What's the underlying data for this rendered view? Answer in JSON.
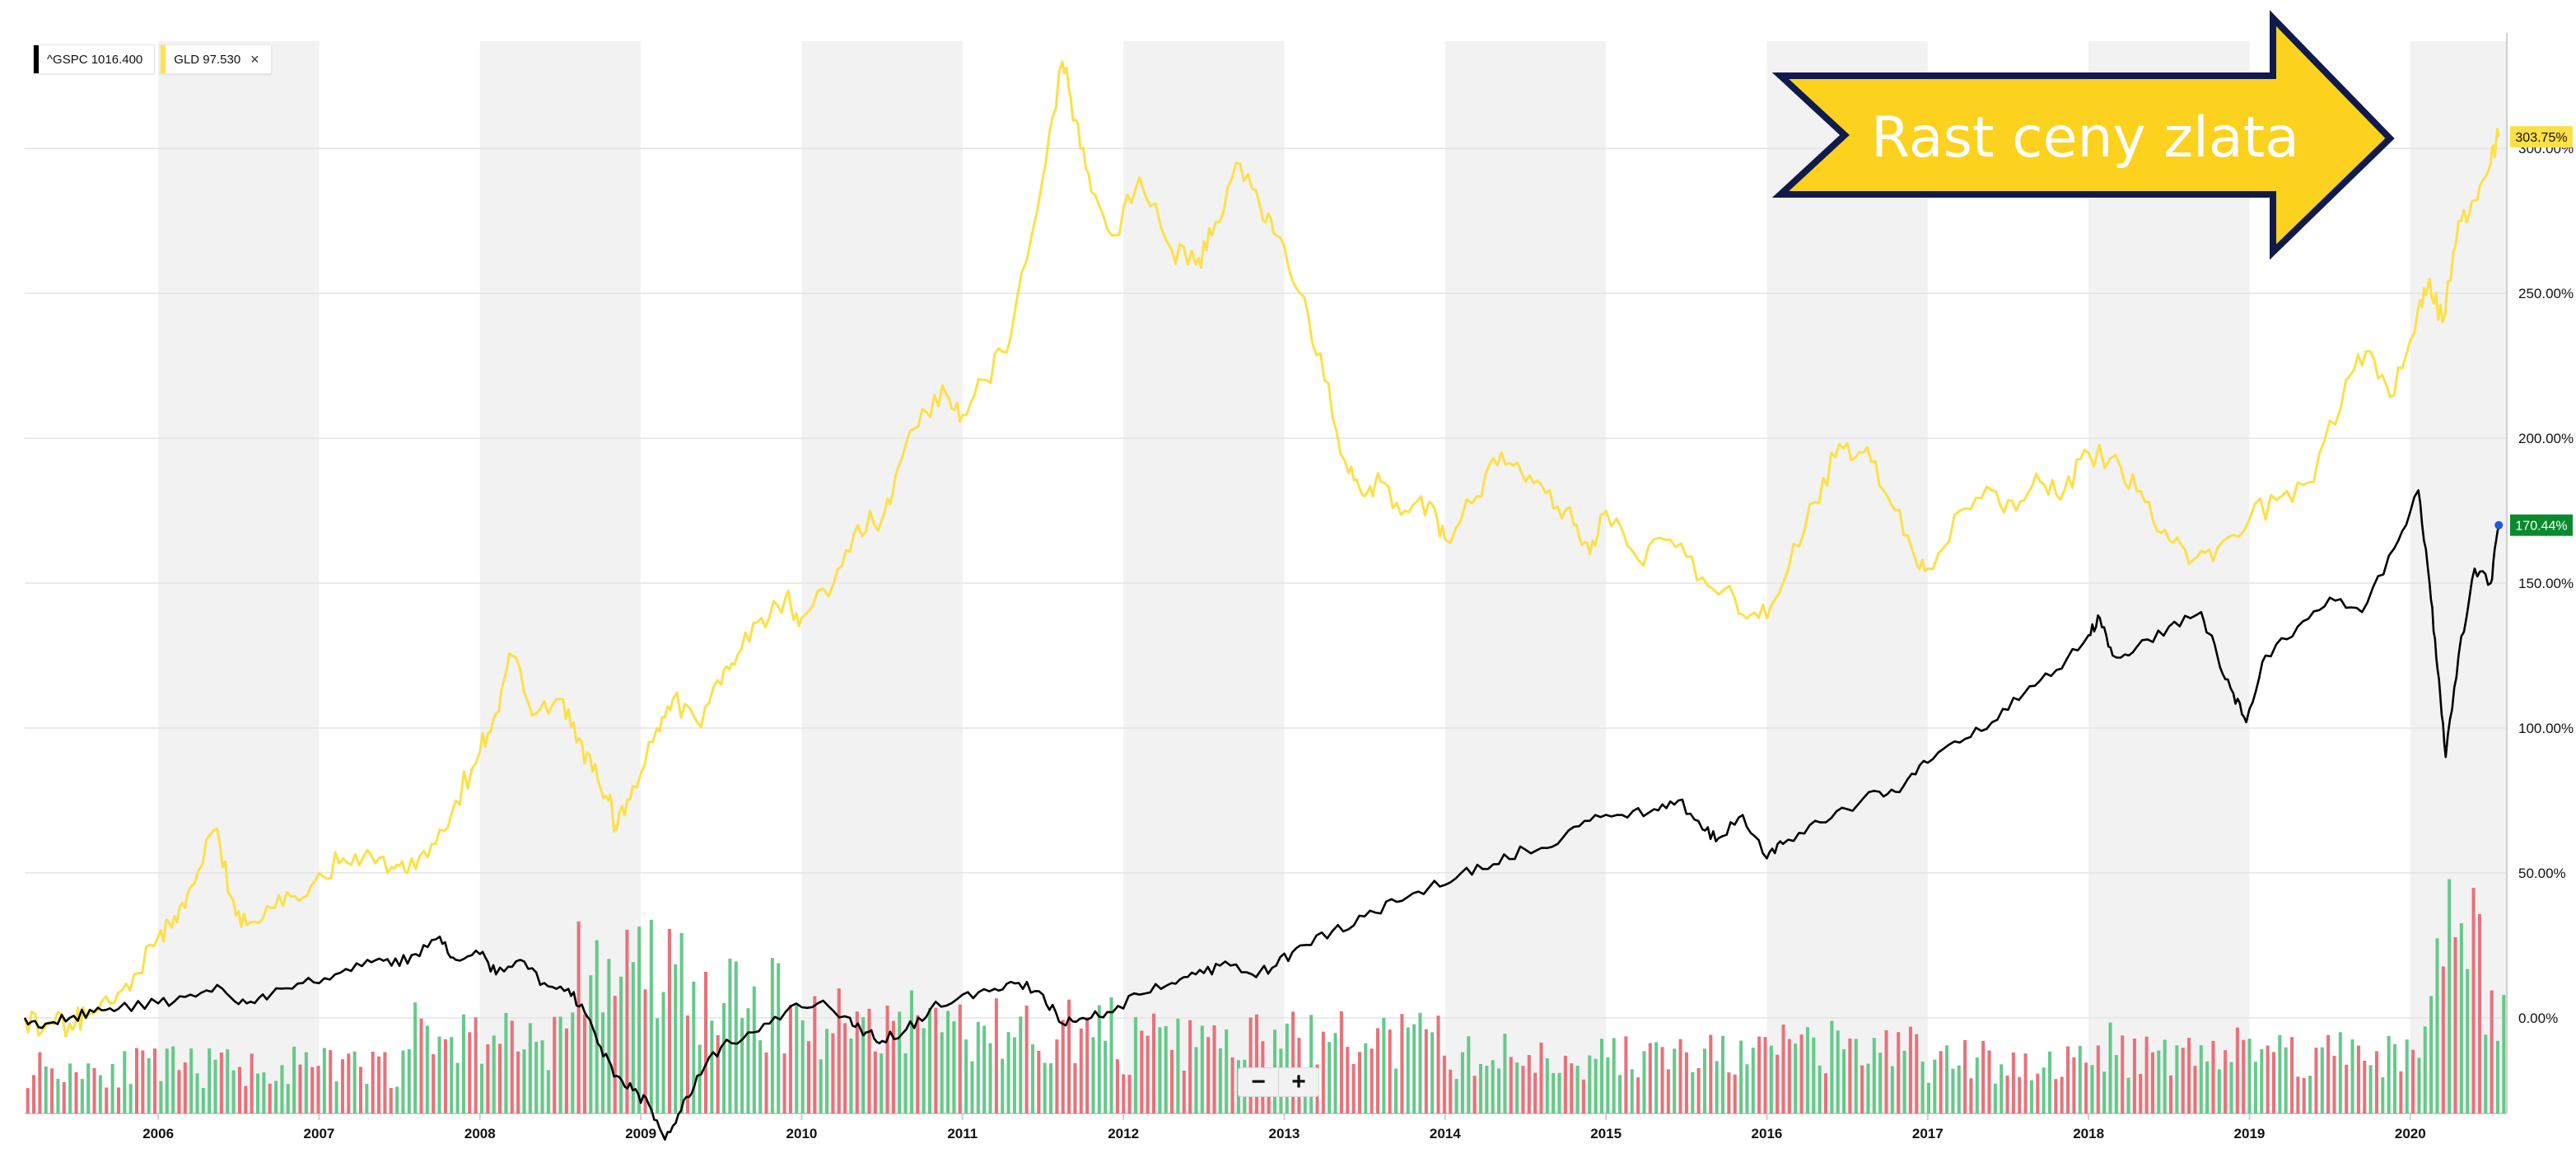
{
  "legend": [
    {
      "label": "^GSPC 1016.400",
      "color": "#000000",
      "closable": false
    },
    {
      "label": "GLD 97.530",
      "color": "#ffe14d",
      "closable": true
    }
  ],
  "legend_close_glyph": "×",
  "zoom": {
    "minus": "−",
    "plus": "+"
  },
  "overlay_arrow": {
    "text": "Rast ceny zlata",
    "fill": "#fcd21e",
    "stroke": "#0f1b4a",
    "text_color": "#ffffff"
  },
  "colors": {
    "gld": "#fde047",
    "gspc": "#000000",
    "vol_up": "#65c98a",
    "vol_down": "#e8717a",
    "band": "#f2f2f2",
    "gld_badge_bg": "#fde047",
    "gspc_badge_bg": "#0a8a2e"
  },
  "chart_data": {
    "type": "line",
    "x_unit": "year",
    "xlim": [
      2005.17,
      2020.6
    ],
    "ylim": [
      -0.33,
      3.37
    ],
    "y_ticks": [
      0,
      0.5,
      1.0,
      1.5,
      2.0,
      2.5,
      3.0
    ],
    "y_tick_labels": [
      "0.00%",
      "50.00%",
      "100.00%",
      "150.00%",
      "200.00%",
      "250.00%",
      "300.00%"
    ],
    "x_ticks": [
      2006,
      2007,
      2008,
      2009,
      2010,
      2011,
      2012,
      2013,
      2014,
      2015,
      2016,
      2017,
      2018,
      2019,
      2020
    ],
    "x_tick_labels": [
      "2006",
      "2007",
      "2008",
      "2009",
      "2010",
      "2011",
      "2012",
      "2013",
      "2014",
      "2015",
      "2016",
      "2017",
      "2018",
      "2019",
      "2020"
    ],
    "grid": true,
    "legend_position": "top-left",
    "series": [
      {
        "name": "GLD",
        "last_label": "303.75%",
        "x": [
          2005.17,
          2005.3,
          2005.45,
          2005.55,
          2005.7,
          2005.85,
          2006.0,
          2006.1,
          2006.2,
          2006.35,
          2006.45,
          2006.55,
          2006.7,
          2006.85,
          2007.0,
          2007.15,
          2007.3,
          2007.45,
          2007.55,
          2007.7,
          2007.85,
          2008.0,
          2008.1,
          2008.2,
          2008.35,
          2008.5,
          2008.6,
          2008.7,
          2008.8,
          2008.85,
          2008.95,
          2009.1,
          2009.2,
          2009.35,
          2009.5,
          2009.6,
          2009.75,
          2009.9,
          2010.0,
          2010.2,
          2010.35,
          2010.5,
          2010.6,
          2010.75,
          2010.9,
          2011.0,
          2011.15,
          2011.3,
          2011.5,
          2011.62,
          2011.7,
          2011.8,
          2011.95,
          2012.1,
          2012.3,
          2012.45,
          2012.55,
          2012.7,
          2012.85,
          2012.95,
          2013.1,
          2013.25,
          2013.4,
          2013.5,
          2013.6,
          2013.75,
          2013.9,
          2014.0,
          2014.2,
          2014.35,
          2014.5,
          2014.65,
          2014.8,
          2014.9,
          2015.0,
          2015.2,
          2015.4,
          2015.6,
          2015.8,
          2015.95,
          2016.1,
          2016.3,
          2016.45,
          2016.6,
          2016.75,
          2016.9,
          2017.0,
          2017.2,
          2017.4,
          2017.55,
          2017.7,
          2017.85,
          2018.0,
          2018.2,
          2018.35,
          2018.5,
          2018.65,
          2018.8,
          2019.0,
          2019.2,
          2019.4,
          2019.6,
          2019.75,
          2019.9,
          2020.05,
          2020.12,
          2020.2,
          2020.3,
          2020.4,
          2020.5,
          2020.55
        ],
        "values": [
          0.0,
          -0.03,
          -0.02,
          0.0,
          0.05,
          0.15,
          0.28,
          0.35,
          0.45,
          0.65,
          0.42,
          0.32,
          0.38,
          0.42,
          0.5,
          0.55,
          0.58,
          0.52,
          0.5,
          0.6,
          0.75,
          0.92,
          1.05,
          1.25,
          1.05,
          1.1,
          0.95,
          0.85,
          0.75,
          0.65,
          0.8,
          1.0,
          1.1,
          1.02,
          1.15,
          1.25,
          1.38,
          1.45,
          1.38,
          1.5,
          1.7,
          1.72,
          1.9,
          2.1,
          2.15,
          2.08,
          2.2,
          2.35,
          2.9,
          3.3,
          3.1,
          2.85,
          2.7,
          2.9,
          2.65,
          2.6,
          2.7,
          2.95,
          2.8,
          2.7,
          2.5,
          2.2,
          1.88,
          1.8,
          1.85,
          1.75,
          1.78,
          1.65,
          1.8,
          1.95,
          1.85,
          1.82,
          1.7,
          1.6,
          1.75,
          1.58,
          1.65,
          1.52,
          1.45,
          1.38,
          1.5,
          1.78,
          1.98,
          1.95,
          1.8,
          1.62,
          1.55,
          1.75,
          1.82,
          1.75,
          1.85,
          1.82,
          1.95,
          1.9,
          1.78,
          1.65,
          1.58,
          1.62,
          1.72,
          1.8,
          1.85,
          2.2,
          2.3,
          2.15,
          2.45,
          2.55,
          2.4,
          2.75,
          2.82,
          2.95,
          3.04
        ]
      },
      {
        "name": "^GSPC",
        "last_label": "170.44%",
        "x": [
          2005.17,
          2005.3,
          2005.45,
          2005.6,
          2005.75,
          2006.0,
          2006.2,
          2006.4,
          2006.55,
          2006.7,
          2006.9,
          2007.1,
          2007.3,
          2007.45,
          2007.6,
          2007.75,
          2007.85,
          2008.0,
          2008.1,
          2008.25,
          2008.4,
          2008.55,
          2008.65,
          2008.75,
          2008.85,
          2008.95,
          2009.05,
          2009.15,
          2009.25,
          2009.35,
          2009.5,
          2009.7,
          2009.9,
          2010.1,
          2010.3,
          2010.4,
          2010.5,
          2010.65,
          2010.8,
          2011.0,
          2011.2,
          2011.35,
          2011.5,
          2011.62,
          2011.75,
          2011.9,
          2012.1,
          2012.3,
          2012.45,
          2012.6,
          2012.8,
          2012.95,
          2013.1,
          2013.3,
          2013.5,
          2013.7,
          2013.9,
          2014.1,
          2014.3,
          2014.5,
          2014.7,
          2014.9,
          2015.1,
          2015.3,
          2015.45,
          2015.6,
          2015.7,
          2015.85,
          2016.0,
          2016.1,
          2016.3,
          2016.5,
          2016.7,
          2016.85,
          2017.0,
          2017.2,
          2017.4,
          2017.6,
          2017.8,
          2018.0,
          2018.07,
          2018.15,
          2018.3,
          2018.5,
          2018.7,
          2018.8,
          2018.9,
          2018.98,
          2019.1,
          2019.3,
          2019.5,
          2019.7,
          2019.9,
          2020.05,
          2020.12,
          2020.17,
          2020.22,
          2020.3,
          2020.4,
          2020.5,
          2020.55
        ],
        "values": [
          0.0,
          -0.02,
          0.0,
          0.02,
          0.03,
          0.05,
          0.08,
          0.1,
          0.05,
          0.08,
          0.12,
          0.15,
          0.2,
          0.18,
          0.22,
          0.28,
          0.2,
          0.22,
          0.15,
          0.2,
          0.12,
          0.1,
          0.02,
          -0.1,
          -0.2,
          -0.25,
          -0.3,
          -0.42,
          -0.32,
          -0.2,
          -0.1,
          -0.05,
          0.02,
          0.05,
          0.0,
          -0.05,
          -0.08,
          -0.04,
          0.03,
          0.08,
          0.1,
          0.12,
          0.08,
          -0.02,
          0.0,
          0.02,
          0.08,
          0.12,
          0.15,
          0.18,
          0.15,
          0.18,
          0.25,
          0.3,
          0.35,
          0.4,
          0.45,
          0.5,
          0.53,
          0.58,
          0.6,
          0.68,
          0.7,
          0.72,
          0.75,
          0.65,
          0.62,
          0.7,
          0.55,
          0.6,
          0.68,
          0.72,
          0.78,
          0.8,
          0.88,
          0.95,
          1.02,
          1.12,
          1.2,
          1.32,
          1.38,
          1.25,
          1.28,
          1.35,
          1.4,
          1.25,
          1.12,
          1.02,
          1.25,
          1.35,
          1.45,
          1.4,
          1.62,
          1.82,
          1.5,
          1.2,
          0.9,
          1.25,
          1.55,
          1.5,
          1.7
        ]
      }
    ],
    "volume": {
      "count": 410,
      "ymax": 1.0,
      "seed": 11,
      "regimes": [
        [
          2005.17,
          0.18
        ],
        [
          2007.5,
          0.3
        ],
        [
          2008.6,
          0.55
        ],
        [
          2009.3,
          0.42
        ],
        [
          2010.0,
          0.36
        ],
        [
          2011.0,
          0.32
        ],
        [
          2012.0,
          0.27
        ],
        [
          2013.0,
          0.28
        ],
        [
          2014.0,
          0.22
        ],
        [
          2015.0,
          0.22
        ],
        [
          2016.0,
          0.25
        ],
        [
          2017.0,
          0.2
        ],
        [
          2018.0,
          0.25
        ],
        [
          2019.0,
          0.24
        ],
        [
          2020.1,
          0.7
        ],
        [
          2020.45,
          0.4
        ]
      ]
    }
  }
}
